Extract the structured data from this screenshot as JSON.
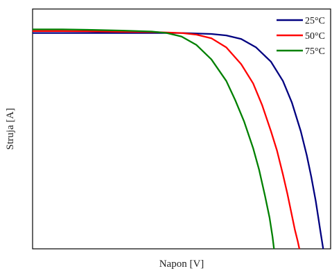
{
  "chart_data": {
    "type": "line",
    "xlabel": "Napon [V]",
    "ylabel": "Struja [A]",
    "xlim": [
      0,
      1
    ],
    "ylim": [
      0,
      1
    ],
    "ticks": "none",
    "grid": false,
    "legend_position": "top-right",
    "series": [
      {
        "name": "25°C",
        "color": "#000080",
        "x": [
          0.0,
          0.1,
          0.2,
          0.3,
          0.4,
          0.5,
          0.6,
          0.65,
          0.7,
          0.75,
          0.8,
          0.84,
          0.87,
          0.9,
          0.92,
          0.935,
          0.95,
          0.96,
          0.965,
          0.97,
          0.975
        ],
        "y": [
          0.9,
          0.9,
          0.9,
          0.9,
          0.9,
          0.9,
          0.896,
          0.89,
          0.875,
          0.84,
          0.78,
          0.7,
          0.61,
          0.49,
          0.39,
          0.3,
          0.2,
          0.12,
          0.08,
          0.04,
          0.0
        ]
      },
      {
        "name": "50°C",
        "color": "#ff0000",
        "x": [
          0.0,
          0.1,
          0.2,
          0.3,
          0.4,
          0.5,
          0.55,
          0.6,
          0.65,
          0.7,
          0.74,
          0.77,
          0.8,
          0.82,
          0.84,
          0.855,
          0.87,
          0.88,
          0.89,
          0.895
        ],
        "y": [
          0.908,
          0.908,
          0.907,
          0.905,
          0.904,
          0.9,
          0.893,
          0.878,
          0.84,
          0.77,
          0.69,
          0.6,
          0.49,
          0.41,
          0.31,
          0.23,
          0.14,
          0.08,
          0.03,
          0.0
        ]
      },
      {
        "name": "75°C",
        "color": "#008000",
        "x": [
          0.0,
          0.1,
          0.2,
          0.3,
          0.4,
          0.45,
          0.5,
          0.55,
          0.6,
          0.65,
          0.68,
          0.71,
          0.74,
          0.76,
          0.78,
          0.795,
          0.805,
          0.81
        ],
        "y": [
          0.915,
          0.915,
          0.913,
          0.91,
          0.906,
          0.9,
          0.885,
          0.85,
          0.79,
          0.7,
          0.62,
          0.53,
          0.42,
          0.33,
          0.22,
          0.13,
          0.05,
          0.0
        ]
      }
    ]
  }
}
